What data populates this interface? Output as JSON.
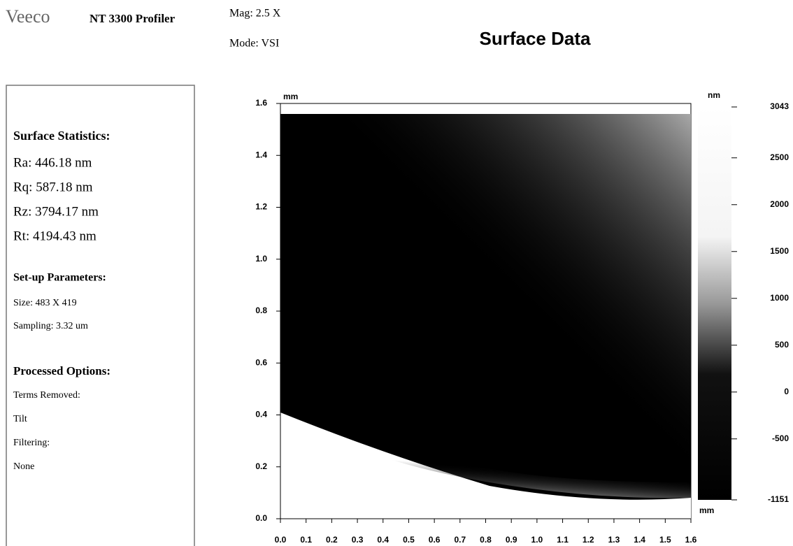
{
  "header": {
    "logo": "Veeco",
    "product": "NT 3300 Profiler",
    "mag": "Mag: 2.5 X",
    "mode": "Mode: VSI",
    "title": "Surface Data"
  },
  "sidebar": {
    "sections": [
      {
        "heading": "Surface Statistics:",
        "lines": [
          "Ra: 446.18 nm",
          "Rq: 587.18 nm",
          "Rz: 3794.17 nm",
          "Rt: 4194.43 nm"
        ]
      },
      {
        "heading": "Set-up Parameters:",
        "lines": [
          "Size: 483 X 419",
          "Sampling: 3.32 um"
        ]
      },
      {
        "heading": "Processed Options:",
        "lines": [
          "Terms Removed:",
          "Tilt",
          "Filtering:",
          "None"
        ]
      }
    ]
  },
  "plot": {
    "y_unit": "mm",
    "x_unit": "mm",
    "z_unit": "nm",
    "xlim": [
      0,
      1.6
    ],
    "ylim": [
      0,
      1.6
    ],
    "xticks": [
      {
        "value": 0,
        "label": "0.0"
      },
      {
        "value": 0.1,
        "label": "0.1"
      },
      {
        "value": 0.2,
        "label": "0.2"
      },
      {
        "value": 0.3,
        "label": "0.3"
      },
      {
        "value": 0.4,
        "label": "0.4"
      },
      {
        "value": 0.5,
        "label": "0.5"
      },
      {
        "value": 0.6,
        "label": "0.6"
      },
      {
        "value": 0.7,
        "label": "0.7"
      },
      {
        "value": 0.8,
        "label": "0.8"
      },
      {
        "value": 0.9,
        "label": "0.9"
      },
      {
        "value": 1,
        "label": "1.0"
      },
      {
        "value": 1.1,
        "label": "1.1"
      },
      {
        "value": 1.2,
        "label": "1.2"
      },
      {
        "value": 1.3,
        "label": "1.3"
      },
      {
        "value": 1.4,
        "label": "1.4"
      },
      {
        "value": 1.5,
        "label": "1.5"
      },
      {
        "value": 1.6,
        "label": "1.6"
      }
    ],
    "yticks": [
      {
        "value": 0,
        "label": "0.0"
      },
      {
        "value": 0.2,
        "label": "0.2"
      },
      {
        "value": 0.4,
        "label": "0.4"
      },
      {
        "value": 0.6,
        "label": "0.6"
      },
      {
        "value": 0.8,
        "label": "0.8"
      },
      {
        "value": 1,
        "label": "1.0"
      },
      {
        "value": 1.2,
        "label": "1.2"
      },
      {
        "value": 1.4,
        "label": "1.4"
      },
      {
        "value": 1.6,
        "label": "1.6"
      }
    ],
    "zlim": [
      -1151,
      3043
    ],
    "zticks": [
      3043,
      2500,
      2000,
      1500,
      1000,
      500,
      0,
      -500,
      -1151
    ]
  }
}
